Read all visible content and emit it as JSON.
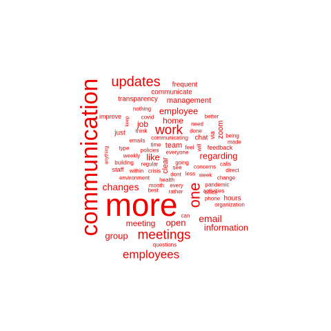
{
  "cloud": {
    "color": "#ee0000",
    "words": [
      "communication",
      "more",
      "updates",
      "employees",
      "meetings",
      "work",
      "one",
      "email",
      "changes",
      "information",
      "employee",
      "open",
      "group",
      "meeting",
      "regarding",
      "like",
      "home",
      "job",
      "management",
      "frequent",
      "communicate",
      "transparency",
      "zoom",
      "hours",
      "team",
      "clear",
      "feedback",
      "via",
      "chat",
      "staff",
      "just",
      "nothing",
      "improve",
      "keep",
      "covid",
      "better",
      "need",
      "think",
      "done",
      "emails",
      "communicating",
      "being",
      "made",
      "type",
      "time",
      "policies",
      "feel",
      "will",
      "building",
      "regular",
      "going",
      "calls",
      "weekly",
      "everyone",
      "anything",
      "concerns",
      "within",
      "crisis",
      "see",
      "direct",
      "environment",
      "health",
      "dont",
      "less",
      "week",
      "change",
      "month",
      "every",
      "pandemic",
      "best",
      "rather",
      "activities",
      "office",
      "phone",
      "organization",
      "can",
      "questions"
    ]
  }
}
